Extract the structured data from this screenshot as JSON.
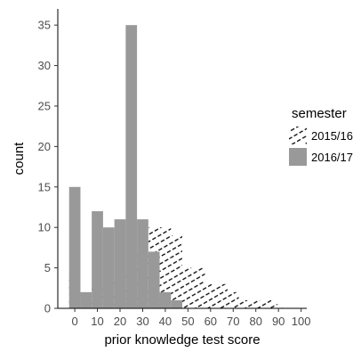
{
  "chart_data": {
    "type": "bar",
    "variant": "overlapping-histogram",
    "title": "",
    "xlabel": "prior knowledge test score",
    "ylabel": "count",
    "xlim": [
      -7.5,
      102.5
    ],
    "ylim": [
      0,
      37
    ],
    "x_ticks": [
      0,
      10,
      20,
      30,
      40,
      50,
      60,
      70,
      80,
      90,
      100
    ],
    "y_ticks": [
      0,
      5,
      10,
      15,
      20,
      25,
      30,
      35
    ],
    "bin_width": 5,
    "grid": false,
    "legend": {
      "title": "semester",
      "position": "right"
    },
    "series": [
      {
        "name": "2015/16",
        "fill": "hatched",
        "color": "#000000",
        "bins": [
          {
            "x": 0,
            "count": 4
          },
          {
            "x": 5,
            "count": 0
          },
          {
            "x": 10,
            "count": 3
          },
          {
            "x": 15,
            "count": 2
          },
          {
            "x": 20,
            "count": 4
          },
          {
            "x": 25,
            "count": 4
          },
          {
            "x": 30,
            "count": 7
          },
          {
            "x": 35,
            "count": 10
          },
          {
            "x": 40,
            "count": 10
          },
          {
            "x": 45,
            "count": 9
          },
          {
            "x": 50,
            "count": 5
          },
          {
            "x": 55,
            "count": 5
          },
          {
            "x": 60,
            "count": 3
          },
          {
            "x": 65,
            "count": 3
          },
          {
            "x": 70,
            "count": 2
          },
          {
            "x": 75,
            "count": 1
          },
          {
            "x": 80,
            "count": 1
          },
          {
            "x": 85,
            "count": 1
          },
          {
            "x": 90,
            "count": 0.5
          }
        ]
      },
      {
        "name": "2016/17",
        "fill": "solid",
        "color": "#999999",
        "bins": [
          {
            "x": 0,
            "count": 15
          },
          {
            "x": 5,
            "count": 2
          },
          {
            "x": 10,
            "count": 12
          },
          {
            "x": 15,
            "count": 10
          },
          {
            "x": 20,
            "count": 11
          },
          {
            "x": 25,
            "count": 35
          },
          {
            "x": 30,
            "count": 11
          },
          {
            "x": 35,
            "count": 7
          },
          {
            "x": 40,
            "count": 2
          },
          {
            "x": 45,
            "count": 1
          }
        ]
      }
    ]
  }
}
